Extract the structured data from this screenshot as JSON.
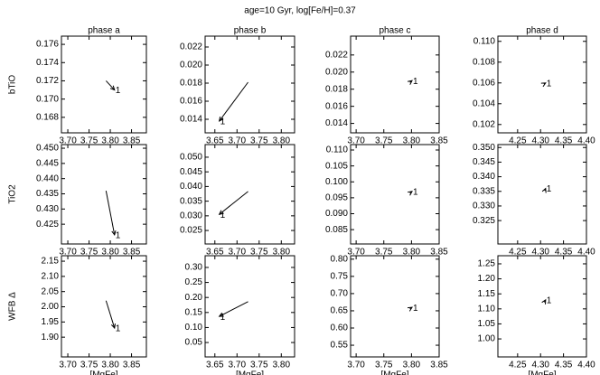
{
  "title": "age=10 Gyr, log[Fe/H]=0.37",
  "chart_data": [
    {
      "type": "line",
      "title": "phase a",
      "ylabel": "bTiO",
      "x": [
        3.79,
        3.81
      ],
      "values": [
        0.172,
        0.171
      ],
      "color": "#000000",
      "annotation": "1",
      "xlim": [
        3.685,
        3.885
      ],
      "xticks": [
        {
          "value": 3.7,
          "label": "3.70"
        },
        3.75,
        {
          "value": 3.8,
          "label": "3.80"
        },
        3.85
      ],
      "ylim": [
        0.1663,
        0.1769
      ],
      "yticks": [
        0.168,
        {
          "value": 0.17,
          "label": "0.170"
        },
        0.172,
        0.174,
        0.176
      ]
    },
    {
      "type": "line",
      "title": "phase b",
      "x": [
        3.725,
        3.66
      ],
      "values": [
        0.0181,
        0.0138
      ],
      "color": "#000000",
      "annotation": "1",
      "xlim": [
        3.628,
        3.83
      ],
      "xticks": [
        3.65,
        {
          "value": 3.7,
          "label": "3.70"
        },
        3.75,
        {
          "value": 3.8,
          "label": "3.80"
        }
      ],
      "ylim": [
        0.0125,
        0.0232
      ],
      "yticks": [
        0.014,
        0.016,
        0.018,
        {
          "value": 0.02,
          "label": "0.020"
        },
        0.022
      ]
    },
    {
      "type": "line",
      "title": "phase c",
      "x": [
        3.797,
        3.801
      ],
      "values": [
        0.0188,
        0.019
      ],
      "color": "#000000",
      "annotation": "1",
      "xlim": [
        3.69,
        3.85
      ],
      "xticks": [
        {
          "value": 3.7,
          "label": "3.70"
        },
        3.75,
        {
          "value": 3.8,
          "label": "3.80"
        },
        3.85
      ],
      "ylim": [
        0.0129,
        0.0242
      ],
      "yticks": [
        0.014,
        0.016,
        0.018,
        {
          "value": 0.02,
          "label": "0.020"
        },
        0.022
      ]
    },
    {
      "type": "line",
      "title": "phase d",
      "x": [
        4.307,
        4.311
      ],
      "values": [
        0.1059,
        0.106
      ],
      "color": "#000000",
      "annotation": "1",
      "xlim": [
        4.207,
        4.4
      ],
      "xticks": [
        4.25,
        {
          "value": 4.3,
          "label": "4.30"
        },
        4.35,
        {
          "value": 4.4,
          "label": "4.40"
        }
      ],
      "ylim": [
        0.1012,
        0.1105
      ],
      "yticks": [
        0.102,
        0.104,
        0.106,
        0.108,
        {
          "value": 0.11,
          "label": "0.110"
        }
      ]
    },
    {
      "type": "line",
      "ylabel": "TiO2",
      "x": [
        3.79,
        3.81
      ],
      "values": [
        0.436,
        0.4215
      ],
      "color": "#000000",
      "annotation": "1",
      "xlim": [
        3.685,
        3.885
      ],
      "xticks": [
        {
          "value": 3.7,
          "label": "3.70"
        },
        3.75,
        {
          "value": 3.8,
          "label": "3.80"
        },
        3.85
      ],
      "ylim": [
        0.4185,
        0.4512
      ],
      "yticks": [
        0.425,
        {
          "value": 0.43,
          "label": "0.430"
        },
        0.435,
        {
          "value": 0.44,
          "label": "0.440"
        },
        0.445,
        {
          "value": 0.45,
          "label": "0.450"
        }
      ]
    },
    {
      "type": "line",
      "x": [
        3.725,
        3.66
      ],
      "values": [
        0.0383,
        0.0305
      ],
      "color": "#000000",
      "annotation": "1",
      "xlim": [
        3.628,
        3.83
      ],
      "xticks": [
        3.65,
        {
          "value": 3.7,
          "label": "3.70"
        },
        3.75,
        {
          "value": 3.8,
          "label": "3.80"
        }
      ],
      "ylim": [
        0.0204,
        0.0543
      ],
      "yticks": [
        0.025,
        {
          "value": 0.03,
          "label": "0.030"
        },
        0.035,
        {
          "value": 0.04,
          "label": "0.040"
        },
        0.045,
        {
          "value": 0.05,
          "label": "0.050"
        }
      ]
    },
    {
      "type": "line",
      "x": [
        3.797,
        3.801
      ],
      "values": [
        0.0965,
        0.097
      ],
      "color": "#000000",
      "annotation": "1",
      "xlim": [
        3.69,
        3.85
      ],
      "xticks": [
        {
          "value": 3.7,
          "label": "3.70"
        },
        3.75,
        {
          "value": 3.8,
          "label": "3.80"
        },
        3.85
      ],
      "ylim": [
        0.0805,
        0.1117
      ],
      "yticks": [
        0.085,
        {
          "value": 0.09,
          "label": "0.090"
        },
        0.095,
        {
          "value": 0.1,
          "label": "0.100"
        },
        0.105,
        {
          "value": 0.11,
          "label": "0.110"
        }
      ]
    },
    {
      "type": "line",
      "x": [
        4.309,
        4.311
      ],
      "values": [
        0.3352,
        0.336
      ],
      "color": "#000000",
      "annotation": "1",
      "xlim": [
        4.207,
        4.4
      ],
      "xticks": [
        4.25,
        {
          "value": 4.3,
          "label": "4.30"
        },
        4.35,
        {
          "value": 4.4,
          "label": "4.40"
        }
      ],
      "ylim": [
        0.317,
        0.351
      ],
      "yticks": [
        0.325,
        {
          "value": 0.33,
          "label": "0.330"
        },
        0.335,
        {
          "value": 0.34,
          "label": "0.340"
        },
        0.345,
        {
          "value": 0.35,
          "label": "0.350"
        }
      ]
    },
    {
      "type": "line",
      "ylabel": "WFB Δ",
      "xlabel": "[MgFe]",
      "x": [
        3.79,
        3.81
      ],
      "values": [
        2.02,
        1.93
      ],
      "color": "#000000",
      "annotation": "1",
      "xlim": [
        3.685,
        3.885
      ],
      "xticks": [
        {
          "value": 3.7,
          "label": "3.70"
        },
        3.75,
        {
          "value": 3.8,
          "label": "3.80"
        },
        3.85
      ],
      "ylim": [
        1.835,
        2.168
      ],
      "yticks": [
        {
          "value": 1.9,
          "label": "1.90"
        },
        1.95,
        {
          "value": 2,
          "label": "2.00"
        },
        2.05,
        {
          "value": 2.1,
          "label": "2.10"
        },
        2.15
      ]
    },
    {
      "type": "line",
      "xlabel": "[MgFe]",
      "x": [
        3.725,
        3.66
      ],
      "values": [
        0.186,
        0.137
      ],
      "color": "#000000",
      "annotation": "1",
      "xlim": [
        3.628,
        3.83
      ],
      "xticks": [
        3.65,
        {
          "value": 3.7,
          "label": "3.70"
        },
        3.75,
        {
          "value": 3.8,
          "label": "3.80"
        }
      ],
      "ylim": [
        0.002,
        0.339
      ],
      "yticks": [
        0.05,
        {
          "value": 0.1,
          "label": "0.10"
        },
        0.15,
        {
          "value": 0.2,
          "label": "0.20"
        },
        0.25,
        {
          "value": 0.3,
          "label": "0.30"
        }
      ]
    },
    {
      "type": "line",
      "xlabel": "[MgFe]",
      "x": [
        3.797,
        3.801
      ],
      "values": [
        0.656,
        0.66
      ],
      "color": "#000000",
      "annotation": "1",
      "xlim": [
        3.69,
        3.85
      ],
      "xticks": [
        {
          "value": 3.7,
          "label": "3.70"
        },
        3.75,
        {
          "value": 3.8,
          "label": "3.80"
        },
        3.85
      ],
      "ylim": [
        0.516,
        0.81
      ],
      "yticks": [
        0.55,
        {
          "value": 0.6,
          "label": "0.60"
        },
        0.65,
        {
          "value": 0.7,
          "label": "0.70"
        },
        0.75,
        {
          "value": 0.8,
          "label": "0.80"
        }
      ]
    },
    {
      "type": "line",
      "xlabel": "[MgFe]",
      "x": [
        4.308,
        4.311
      ],
      "values": [
        1.122,
        1.13
      ],
      "color": "#000000",
      "annotation": "1",
      "xlim": [
        4.207,
        4.4
      ],
      "xticks": [
        4.25,
        {
          "value": 4.3,
          "label": "4.30"
        },
        4.35,
        {
          "value": 4.4,
          "label": "4.40"
        }
      ],
      "ylim": [
        0.94,
        1.277
      ],
      "yticks": [
        {
          "value": 1,
          "label": "1.00"
        },
        1.05,
        {
          "value": 1.1,
          "label": "1.10"
        },
        1.15,
        {
          "value": 1.2,
          "label": "1.20"
        },
        1.25
      ]
    }
  ]
}
